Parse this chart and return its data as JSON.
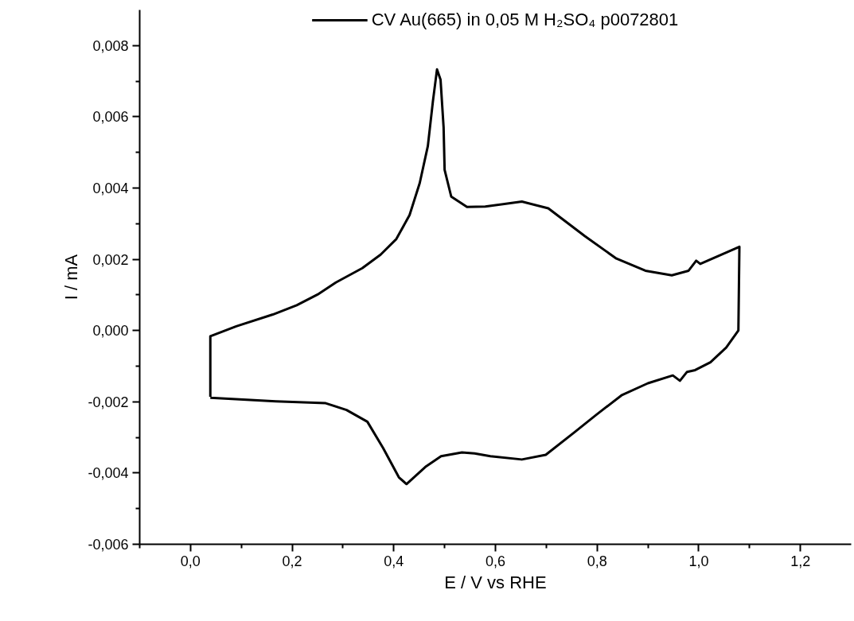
{
  "chart_data": {
    "type": "line",
    "xlabel": "E / V vs RHE",
    "ylabel": "I / mA",
    "xlim": [
      -0.1,
      1.3
    ],
    "ylim": [
      -0.006,
      0.009
    ],
    "xticks": [
      {
        "value": -0.1,
        "label": null
      },
      {
        "value": 0.0,
        "label": "0,0"
      },
      {
        "value": 0.1,
        "label": null
      },
      {
        "value": 0.2,
        "label": "0,2"
      },
      {
        "value": 0.3,
        "label": null
      },
      {
        "value": 0.4,
        "label": "0,4"
      },
      {
        "value": 0.5,
        "label": null
      },
      {
        "value": 0.6,
        "label": "0,6"
      },
      {
        "value": 0.7,
        "label": null
      },
      {
        "value": 0.8,
        "label": "0,8"
      },
      {
        "value": 0.9,
        "label": null
      },
      {
        "value": 1.0,
        "label": "1,0"
      },
      {
        "value": 1.1,
        "label": null
      },
      {
        "value": 1.2,
        "label": "1,2"
      }
    ],
    "yticks": [
      {
        "value": -0.006,
        "label": "-0,006"
      },
      {
        "value": -0.005,
        "label": null
      },
      {
        "value": -0.004,
        "label": "-0,004"
      },
      {
        "value": -0.003,
        "label": null
      },
      {
        "value": -0.002,
        "label": "-0,002"
      },
      {
        "value": -0.001,
        "label": null
      },
      {
        "value": 0.0,
        "label": "0,000"
      },
      {
        "value": 0.001,
        "label": null
      },
      {
        "value": 0.002,
        "label": "0,002"
      },
      {
        "value": 0.003,
        "label": null
      },
      {
        "value": 0.004,
        "label": "0,004"
      },
      {
        "value": 0.005,
        "label": null
      },
      {
        "value": 0.006,
        "label": "0,006"
      },
      {
        "value": 0.007,
        "label": null
      },
      {
        "value": 0.008,
        "label": "0,008"
      }
    ],
    "grid": false,
    "legend": "top",
    "marker": "none",
    "line_style": "solid",
    "series": [
      {
        "name": "CV Au(665) in 0,05 M H₂SO₄ p0072801",
        "color": "#000000",
        "x": [
          0.039,
          0.039,
          0.09,
          0.162,
          0.209,
          0.25,
          0.286,
          0.338,
          0.374,
          0.405,
          0.431,
          0.451,
          0.467,
          0.477,
          0.485,
          0.492,
          0.498,
          0.5,
          0.513,
          0.544,
          0.58,
          0.632,
          0.652,
          0.704,
          0.776,
          0.838,
          0.895,
          0.947,
          0.98,
          0.995,
          1.003,
          1.08,
          1.078,
          1.054,
          1.023,
          0.993,
          0.977,
          0.963,
          0.949,
          0.9,
          0.848,
          0.797,
          0.755,
          0.699,
          0.652,
          0.59,
          0.559,
          0.534,
          0.493,
          0.462,
          0.425,
          0.41,
          0.379,
          0.348,
          0.307,
          0.266,
          0.168,
          0.039
        ],
        "values": [
          -0.00186,
          -0.00016,
          0.00012,
          0.00045,
          0.00071,
          0.00101,
          0.00135,
          0.00175,
          0.00213,
          0.00257,
          0.00324,
          0.00414,
          0.00518,
          0.00644,
          0.00733,
          0.00704,
          0.0057,
          0.00451,
          0.00376,
          0.00347,
          0.00348,
          0.00358,
          0.00362,
          0.00343,
          0.00265,
          0.00202,
          0.00168,
          0.00155,
          0.00168,
          0.00196,
          0.00187,
          0.00235,
          0.0,
          -0.00048,
          -0.00089,
          -0.00111,
          -0.00116,
          -0.00141,
          -0.00126,
          -0.00148,
          -0.00182,
          -0.00238,
          -0.00286,
          -0.00349,
          -0.00362,
          -0.00353,
          -0.00345,
          -0.00342,
          -0.00353,
          -0.00383,
          -0.00431,
          -0.00412,
          -0.0033,
          -0.00256,
          -0.00223,
          -0.00204,
          -0.00199,
          -0.00189
        ]
      }
    ]
  }
}
